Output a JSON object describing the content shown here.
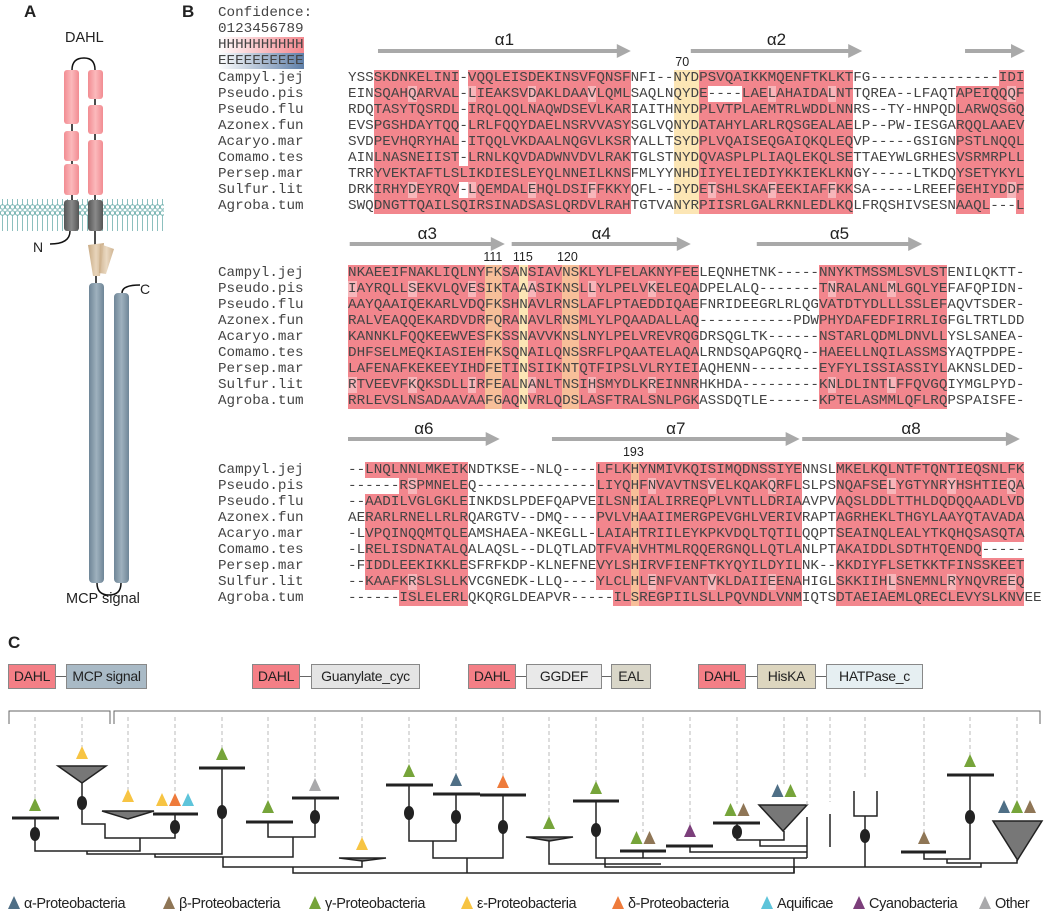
{
  "panels": {
    "a": "A",
    "b": "B",
    "c": "C"
  },
  "panel_a": {
    "top_label": "DAHL",
    "bottom_label": "MCP signal",
    "n_terminus": "N",
    "c_terminus": "C",
    "colors": {
      "dahl": "#f5a0a4",
      "tm": "#6b6b6b",
      "membrane": "#6fb0ad",
      "hamp": "#d8bf9c",
      "mcp": "#8499a9"
    }
  },
  "panel_b": {
    "confidence_title": "Confidence:",
    "confidence_digits": "0123456789",
    "helix_key": "HHHHHHHHHH",
    "strand_key": "EEEEEEEEEE",
    "names": [
      "Campyl.jej",
      "Pseudo.pis",
      "Pseudo.flu",
      "Azonex.fun",
      "Acaryo.mar",
      "Comamo.tes",
      "Persep.mar",
      "Sulfur.lit",
      "Agroba.tum"
    ],
    "blocks": [
      {
        "helices": [
          "α1",
          "α2",
          ""
        ],
        "positions": [
          "70"
        ],
        "sequences": [
          "YSSSKDNKELINI-VQQLEISDEKINSVFQNSFNFI--NYDPSVQAIKKMQENFTKLKTFG---------------IDI",
          "EINSQAHQARVAL-LIEAKSVDAKLDAAVLQMLSAQLNQYDE----LAELAHAIDALNTTQREA--LFAQTAPEIQQQF",
          "RDQTASYTQSRDL-IRQLQQLNAQWDSEVLKARIAITHNYDPLVTPLAEMTRLWDDLNNRS--TY-HNPQDLARWQSGQ",
          "EVSPGSHDAYTQQ-LRLFQQYDAELNSRVVASYSGLVQNYDATAHYLARLRQSGEALAELP--PW-IESGARQQLAAEV",
          "SVDPEVHQRYHAL-ITQQLVKDAALNQGVLKSRYALLTSYDPLVQAISEQGAIQKQLEQVP-----GSIGNPSTLNQQL",
          "AINLNASNEIIST-LRNLKQVDADWNVDVLRAKTGLSTNYDQVASPLPLIAQLEKQLSETTAEYWLGRHESVSRMRPLL",
          "TRRYVEKTAFTLSLIKDIESLEYQLNNEILKNSFMLYYNHDIIYELIEDIYKKIEKLKNGY-----LTKDQYSETYKYL",
          "DRKIRHYDEYRQV-LQEMDALEHQLDSIFFKKYQFL--DYDETSHLSKAFEEKIAFFKKSA-----LREEFGEHIYDDF",
          "SWQDNGTTQAILSQIRSINADSASLQRDVLRAHTGTVANYRPIISRLGALRKNLEDLKQLFRQSHIVSESNAAQL---L"
        ]
      },
      {
        "helices": [
          "α3",
          "α4",
          "α5"
        ],
        "positions": [
          "111",
          "115",
          "120"
        ],
        "sequences": [
          "NKAEEIFNAKLIQLNYFKSANSIAVNSKLYLFELAKNYFEELEQNHETNK-----NNYKTMSSMLSVLSTENILQKTT-",
          "IAYRQLLSEKVLQVESIKTAAASIKNSLLYLPELVKELEQADPELALQ-------TNRALANLMLGQLYEFAFQPIDN-",
          "AAYQAAIQEKARLVDQFKSHNAVLRNSLAFLPTAEDDIQAEFNRIDEEGRLRLQGVATDTYDLLLSSLEFAQVTSDER-",
          "RALVEAQQEKARDVDRFQRANAVLRNSMLYLPQAADALLAQ-----------PDWPHYDAFEDFIRRLIGFGLTRTLDD",
          "KANNKLFQQKEEWVESFKSSNAVVKNSLNYLPELVREVRQGDRSQGLTK------NSTARLQDMLDNVLLYSLSANEA-",
          "DHFSELMEQKIASIEHFKSQNAILQNSSRFLPQAATELAQALRNDSQAPGQRQ--HAEELLNQILASSMSYAQTPDPE-",
          "LAFENAFKEKEEYIHDFETINSIIKNTQTFIPSLVLRYIEIAQHENN--------EYFYLISSIASSIYLAKNSLDED-",
          "RTVEEVFKQKSDLLIRFEALNANLTNSIHSMYDLKREINNRHKHDA---------KNLDLINTLFFQVGQIYMGLPYD-",
          "RRLEVSLNSADAAVAAFGAQNVRLQDSLASFTRALSNLPGKASSDQTLE------KPTELASMMLQFLRQPSPAISFE-"
        ]
      },
      {
        "helices": [
          "α6",
          "α7",
          "α8"
        ],
        "positions": [
          "193"
        ],
        "sequences": [
          "--LNQLNNLMKEIKNDTKSE--NLQ----LFLKHYNMIVKQISIMQDNSSIYENNSLMKELKQLNTFTQNTIEQSNLFK",
          "------RSPMNELEQ--------------LIYQHFNVAVTNSVELKQAKQRFLSLPSNQAFSELYGTYNRYHSHTIEQA",
          "--AADILVGLGKLEINKDSLPDEFQAPVEILSNHIALIRREQPLVNTLLDRIAAVPVAQSLDDLTTHLDQDQQAADLVD",
          "AERARLRNELLRLRQARGTV--DMQ----PVLVHAAIIMERGPEVGHLVERIVRAPTAGRHEKLTHGYLAAYQTAVADA",
          "-LVPQINQQMTQLEAMSHAEA-NKEGLL-LAIAHTRIILEYKPKVDQLTQTILQQPTSEAINQLEALYTKQHQSASQTA",
          "-LRELISDNATALQALAQSL--DLQTLADTFVAHVHTMLRQQERGNQLLQTLANLPTAKAIDDLSDTHTQENDQ-----",
          "-FIDDLEEKIKKLESFRFKDP-KLNEFNEVYLSHIRVFIENFTKYQYILDYILNK--KKDIYFLSETKKTFINSSKEET",
          "--KAAFKRSLSLLKVCGNEDK-LLQ----YLCLHLENFVANTVKLDAIIEENAHIGLSKKIIHLSNEMNLRYNQVREEQ",
          "------ISLELERLQKQRGLDEAPVR-----ILSREGPIILSLLPQVNDLVNMIQTSDTAEIAEMLQRECLEVYSLKNVEE"
        ]
      }
    ],
    "colors": {
      "conserved": "#f2868d",
      "highlight_yellow": "#fbe2a8",
      "highlight_orange": "#f4a46e",
      "helix_arrow": "#a9a9a9"
    }
  },
  "panel_c": {
    "architectures": [
      [
        {
          "label": "DAHL",
          "color": "#f47f86"
        },
        {
          "label": "MCP signal",
          "color": "#a9bac6"
        }
      ],
      [
        {
          "label": "DAHL",
          "color": "#f47f86"
        },
        {
          "label": "Guanylate_cyc",
          "color": "#e4e4e4"
        }
      ],
      [
        {
          "label": "DAHL",
          "color": "#f47f86"
        },
        {
          "label": "GGDEF",
          "color": "#e9e9e9"
        },
        {
          "label": "EAL",
          "color": "#d9d6c8"
        }
      ],
      [
        {
          "label": "DAHL",
          "color": "#f47f86"
        },
        {
          "label": "HisKA",
          "color": "#ddd6bf"
        },
        {
          "label": "HATPase_c",
          "color": "#e6eff2"
        }
      ]
    ],
    "legend": [
      {
        "key": "alpha",
        "label": "α-Proteobacteria",
        "color": "#4f6f86"
      },
      {
        "key": "beta",
        "label": "β-Proteobacteria",
        "color": "#8f7656"
      },
      {
        "key": "gamma",
        "label": "γ-Proteobacteria",
        "color": "#76a43a"
      },
      {
        "key": "epsilon",
        "label": "ε-Proteobacteria",
        "color": "#f7c443"
      },
      {
        "key": "delta",
        "label": "δ-Proteobacteria",
        "color": "#ee7b3b"
      },
      {
        "key": "aquificae",
        "label": "Aquificae",
        "color": "#5ec4da"
      },
      {
        "key": "cyano",
        "label": "Cyanobacteria",
        "color": "#7c3f7b"
      },
      {
        "key": "other",
        "label": "Other",
        "color": "#a9a9ab"
      }
    ],
    "leaf_taxa": [
      [
        "gamma"
      ],
      [
        "epsilon"
      ],
      [
        "epsilon"
      ],
      [
        "epsilon",
        "delta",
        "aquificae"
      ],
      [
        "gamma"
      ],
      [
        "gamma"
      ],
      [
        "other"
      ],
      [
        "epsilon"
      ],
      [
        "gamma"
      ],
      [
        "alpha"
      ],
      [
        "delta"
      ],
      [
        "gamma"
      ],
      [
        "gamma"
      ],
      [
        "gamma",
        "beta"
      ],
      [
        "cyano"
      ],
      [
        "gamma",
        "beta"
      ],
      [
        "alpha",
        "gamma"
      ],
      [],
      [],
      [],
      [
        "beta"
      ],
      [
        "gamma"
      ],
      [
        "alpha",
        "gamma",
        "beta"
      ]
    ]
  }
}
